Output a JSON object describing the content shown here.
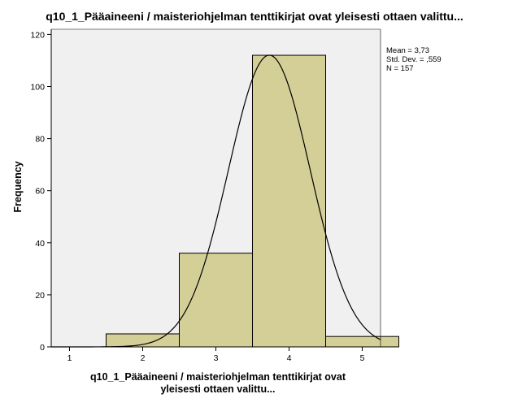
{
  "chart_data": {
    "type": "bar",
    "title": "q10_1_Pääaineeni / maisteriohjelman tenttikirjat ovat yleisesti ottaen valittu...",
    "xlabel_lines": [
      "q10_1_Pääaineeni / maisteriohjelman tenttikirjat ovat",
      "yleisesti ottaen valittu..."
    ],
    "ylabel": "Frequency",
    "categories": [
      "1",
      "2",
      "3",
      "4",
      "5"
    ],
    "values": [
      0,
      5,
      36,
      112,
      4
    ],
    "x_ticks": [
      "1",
      "2",
      "3",
      "4",
      "5"
    ],
    "y_ticks": [
      "0",
      "20",
      "40",
      "60",
      "80",
      "100",
      "120"
    ],
    "xlim": [
      0.75,
      5.25
    ],
    "ylim": [
      0,
      122
    ],
    "normal_curve": {
      "mean": 3.73,
      "std": 0.559,
      "n": 157,
      "bin_width": 1
    },
    "stats_text": [
      "Mean = 3,73",
      "Std. Dev. = ,559",
      "N = 157"
    ],
    "colors": {
      "plot_background": "#f0f0f0",
      "bar_fill": "#d4cf97",
      "bar_stroke": "#000000",
      "curve": "#000000"
    }
  }
}
